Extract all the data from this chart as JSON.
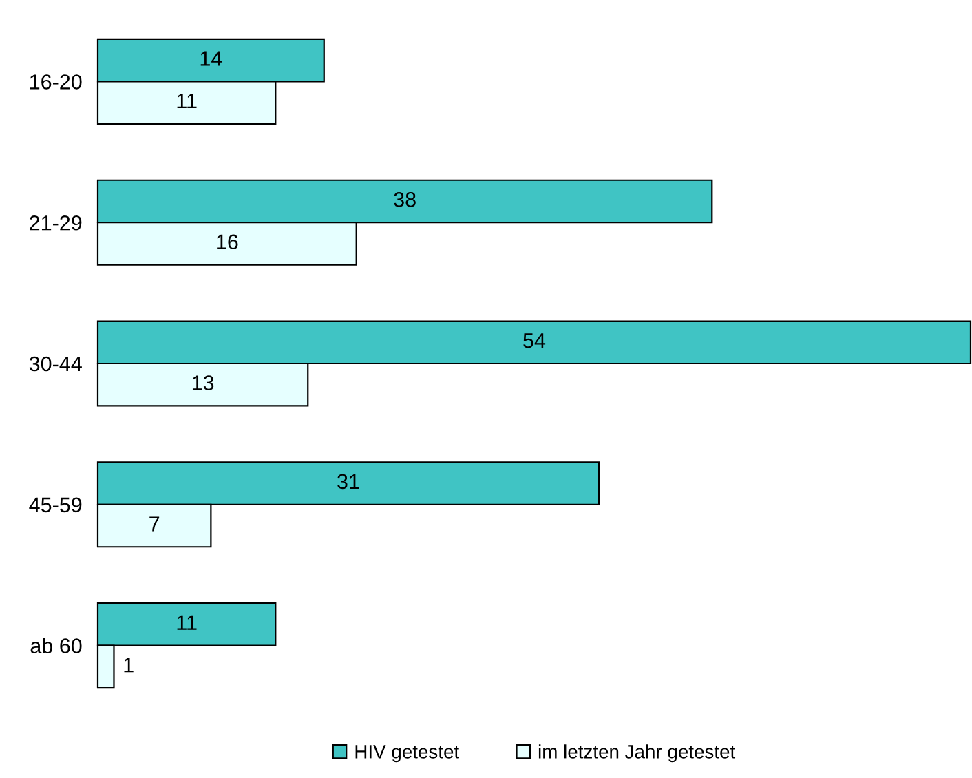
{
  "chart_data": {
    "type": "bar",
    "orientation": "horizontal",
    "categories": [
      "16-20",
      "21-29",
      "30-44",
      "45-59",
      "ab 60"
    ],
    "series": [
      {
        "name": "HIV getestet",
        "color": "#40c4c4",
        "values": [
          14,
          38,
          54,
          31,
          11
        ]
      },
      {
        "name": "im letzten Jahr getestet",
        "color": "#e6ffff",
        "values": [
          11,
          16,
          13,
          7,
          1
        ]
      }
    ],
    "data_labels": true,
    "legend": "bottom",
    "grid": false
  }
}
